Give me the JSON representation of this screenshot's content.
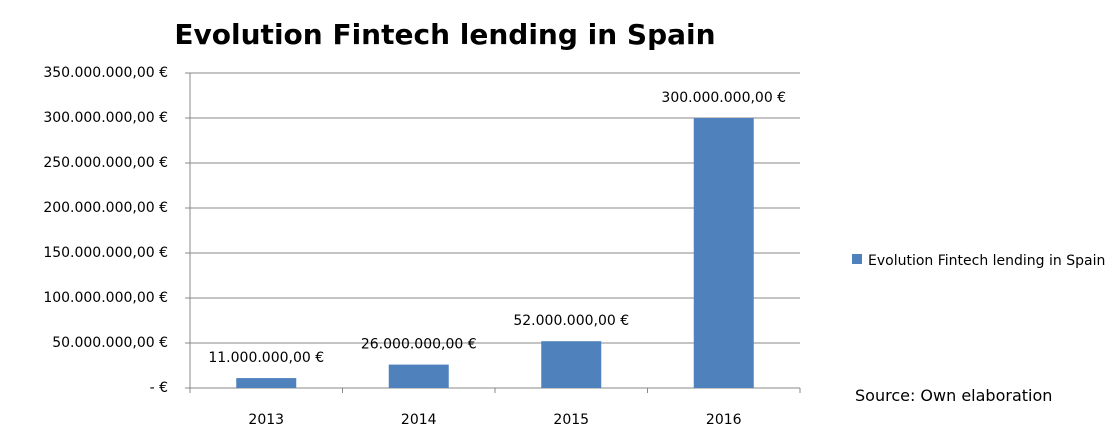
{
  "chart_data": {
    "type": "bar",
    "title": "Evolution Fintech lending in Spain",
    "categories": [
      "2013",
      "2014",
      "2015",
      "2016"
    ],
    "series": [
      {
        "name": "Evolution Fintech lending in Spain",
        "color": "#4f81bd",
        "values": [
          11000000,
          26000000,
          52000000,
          300000000
        ],
        "value_labels": [
          "11.000.000,00 €",
          "26.000.000,00 €",
          "52.000.000,00 €",
          "300.000.000,00 €"
        ]
      }
    ],
    "ylim": [
      0,
      350000000
    ],
    "yticks": [
      {
        "value": 0,
        "label": "-   €"
      },
      {
        "value": 50000000,
        "label": "50.000.000,00 €"
      },
      {
        "value": 100000000,
        "label": "100.000.000,00 €"
      },
      {
        "value": 150000000,
        "label": "150.000.000,00 €"
      },
      {
        "value": 200000000,
        "label": "200.000.000,00 €"
      },
      {
        "value": 250000000,
        "label": "250.000.000,00 €"
      },
      {
        "value": 300000000,
        "label": "300.000.000,00 €"
      },
      {
        "value": 350000000,
        "label": "350.000.000,00 €"
      }
    ],
    "grid": true,
    "legend": "right",
    "annotation": "Source: Own elaboration"
  }
}
